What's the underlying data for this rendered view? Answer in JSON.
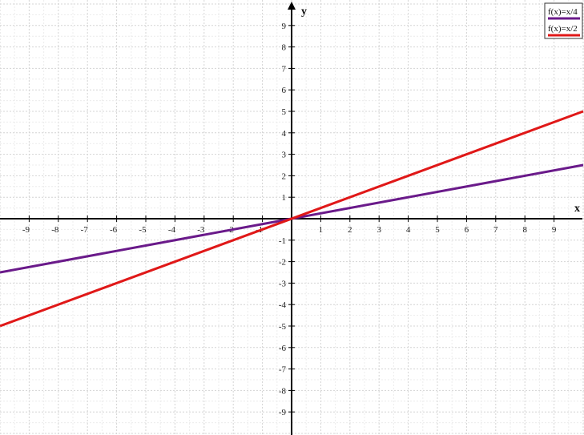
{
  "chart_data": {
    "type": "line",
    "title": "",
    "xlabel": "x",
    "ylabel": "y",
    "xlim": [
      -10,
      10
    ],
    "ylim": [
      -10,
      10
    ],
    "grid": true,
    "legend_position": "top-right",
    "x_ticks": [
      -9,
      -8,
      -7,
      -6,
      -5,
      -4,
      -3,
      -2,
      -1,
      1,
      2,
      3,
      4,
      5,
      6,
      7,
      8,
      9
    ],
    "y_ticks": [
      -9,
      -8,
      -7,
      -6,
      -5,
      -4,
      -3,
      -2,
      -1,
      1,
      2,
      3,
      4,
      5,
      6,
      7,
      8,
      9
    ],
    "series": [
      {
        "name": "f(x)=x/4",
        "slope": 0.25,
        "x": [
          -10,
          10
        ],
        "y": [
          -2.5,
          2.5
        ],
        "color": "#6a1a8a"
      },
      {
        "name": "f(x)=x/2",
        "slope": 0.5,
        "x": [
          -10,
          10
        ],
        "y": [
          -5,
          5
        ],
        "color": "#e01818"
      }
    ]
  }
}
